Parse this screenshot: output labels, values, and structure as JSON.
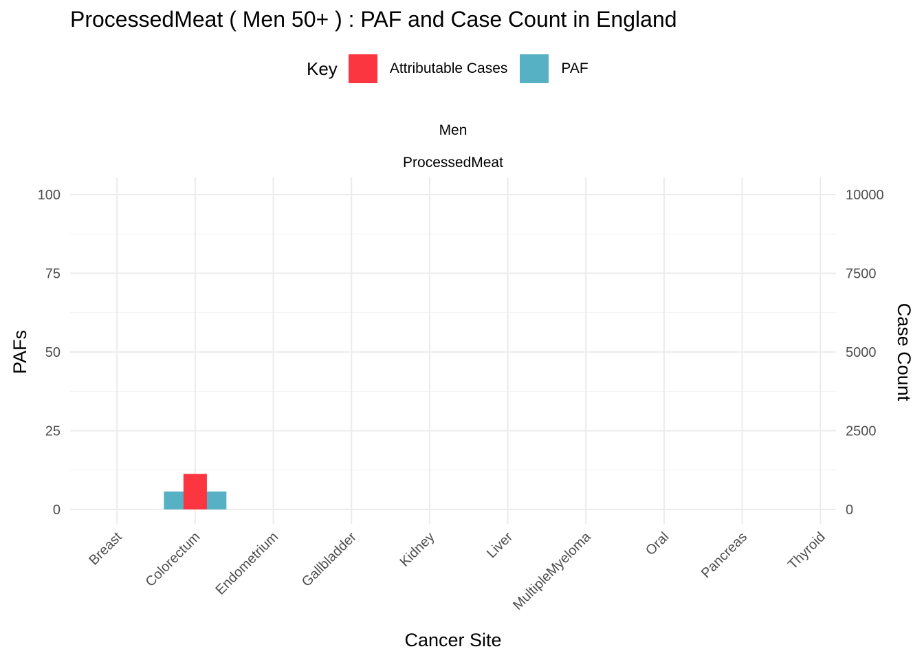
{
  "chart_data": {
    "type": "bar",
    "title": "ProcessedMeat ( Men 50+ ) : PAF and Case Count in England",
    "facet_labels": [
      "Men",
      "ProcessedMeat"
    ],
    "xlabel": "Cancer Site",
    "ylabel": "PAFs",
    "ylabel_right": "Case Count",
    "categories": [
      "Breast",
      "Colorectum",
      "Endometrium",
      "Gallbladder",
      "Kidney",
      "Liver",
      "MultipleMyeloma",
      "Oral",
      "Pancreas",
      "Thyroid"
    ],
    "ylim": [
      0,
      100
    ],
    "ylim_right": [
      0,
      10000
    ],
    "yticks": [
      0,
      25,
      50,
      75,
      100
    ],
    "yticks_right": [
      0,
      2500,
      5000,
      7500,
      10000
    ],
    "grid": true,
    "legend": {
      "title": "Key",
      "placement": "top",
      "entries": [
        {
          "label": "Attributable Cases",
          "color": "#FB3640"
        },
        {
          "label": "PAF",
          "color": "#56B1C5"
        }
      ]
    },
    "series": [
      {
        "name": "PAF",
        "axis": "left",
        "color": "#56B1C5",
        "values": [
          0,
          5.7,
          0,
          0,
          0,
          0,
          0,
          0,
          0,
          0
        ]
      },
      {
        "name": "Attributable Cases",
        "axis": "right",
        "color": "#FB3640",
        "values": [
          0,
          1130,
          0,
          0,
          0,
          0,
          0,
          0,
          0,
          0
        ]
      }
    ]
  }
}
